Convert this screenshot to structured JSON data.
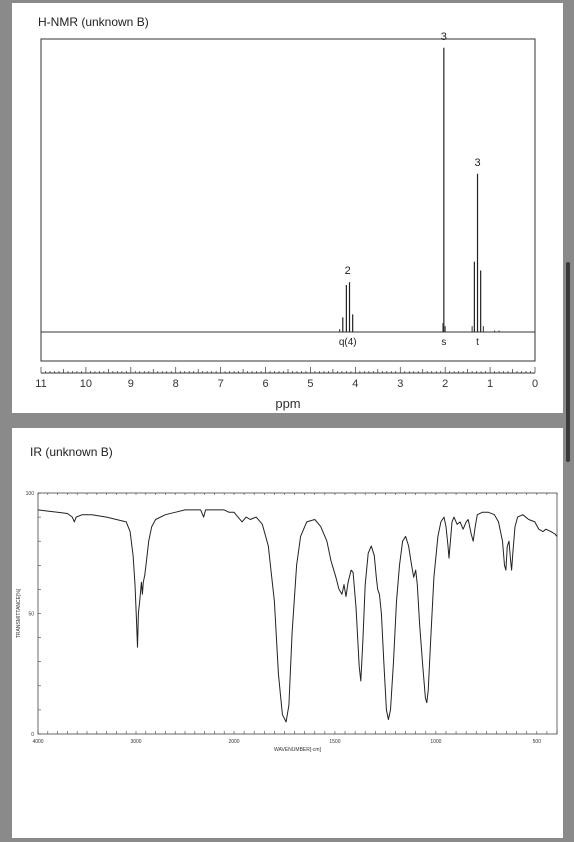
{
  "chart_data": [
    {
      "type": "line",
      "title": "H-NMR (unknown B)",
      "xlabel": "ppm",
      "ylabel": "",
      "xlim": [
        11,
        0
      ],
      "x_reversed": true,
      "x_ticks": [
        "11",
        "10",
        "9",
        "8",
        "7",
        "6",
        "5",
        "4",
        "3",
        "2",
        "1",
        "0"
      ],
      "grid": false,
      "peaks": [
        {
          "shift": 4.28,
          "height": 0.05
        },
        {
          "shift": 4.2,
          "height": 0.16
        },
        {
          "shift": 4.13,
          "height": 0.17
        },
        {
          "shift": 4.06,
          "height": 0.06
        },
        {
          "shift": 2.03,
          "height": 0.97
        },
        {
          "shift": 1.35,
          "height": 0.24
        },
        {
          "shift": 1.28,
          "height": 0.54
        },
        {
          "shift": 1.21,
          "height": 0.21
        }
      ],
      "annotations": [
        {
          "shift": 4.17,
          "integration": "2",
          "multiplicity": "q(4)"
        },
        {
          "shift": 2.03,
          "integration": "3",
          "multiplicity": "s"
        },
        {
          "shift": 1.28,
          "integration": "3",
          "multiplicity": "t"
        }
      ]
    },
    {
      "type": "line",
      "title": "IR (unknown B)",
      "xlabel": "WAVENUMBER[-cm]",
      "ylabel": "TRANSMITTANCE[%]",
      "xlim": [
        4000,
        400
      ],
      "x_reversed": true,
      "ylim": [
        0,
        100
      ],
      "x_ticks": [
        "4000",
        "3000",
        "2000",
        "1500",
        "1000",
        "500"
      ],
      "y_ticks": [
        "100",
        "50",
        "0"
      ],
      "grid": false,
      "spectrum": [
        [
          4000,
          93
        ],
        [
          3900,
          92.5
        ],
        [
          3800,
          92
        ],
        [
          3700,
          91.5
        ],
        [
          3650,
          90
        ],
        [
          3630,
          88
        ],
        [
          3610,
          90
        ],
        [
          3550,
          91
        ],
        [
          3450,
          91
        ],
        [
          3300,
          90
        ],
        [
          3200,
          89
        ],
        [
          3100,
          88
        ],
        [
          3060,
          84
        ],
        [
          3030,
          74
        ],
        [
          3010,
          62
        ],
        [
          2995,
          47
        ],
        [
          2985,
          36
        ],
        [
          2975,
          50
        ],
        [
          2960,
          56
        ],
        [
          2945,
          63
        ],
        [
          2935,
          58
        ],
        [
          2925,
          63
        ],
        [
          2910,
          66
        ],
        [
          2890,
          73
        ],
        [
          2870,
          80
        ],
        [
          2840,
          86
        ],
        [
          2800,
          89
        ],
        [
          2700,
          91
        ],
        [
          2600,
          92
        ],
        [
          2500,
          93
        ],
        [
          2400,
          93
        ],
        [
          2340,
          93
        ],
        [
          2310,
          90
        ],
        [
          2290,
          93
        ],
        [
          2200,
          93
        ],
        [
          2100,
          93
        ],
        [
          2050,
          92
        ],
        [
          2000,
          92
        ],
        [
          1980,
          90
        ],
        [
          1960,
          88
        ],
        [
          1940,
          90
        ],
        [
          1920,
          89
        ],
        [
          1890,
          90
        ],
        [
          1860,
          87
        ],
        [
          1830,
          78
        ],
        [
          1800,
          55
        ],
        [
          1780,
          25
        ],
        [
          1760,
          8
        ],
        [
          1742,
          5
        ],
        [
          1728,
          12
        ],
        [
          1712,
          42
        ],
        [
          1690,
          70
        ],
        [
          1670,
          82
        ],
        [
          1640,
          88
        ],
        [
          1600,
          89
        ],
        [
          1570,
          86
        ],
        [
          1540,
          80
        ],
        [
          1520,
          72
        ],
        [
          1495,
          65
        ],
        [
          1480,
          60
        ],
        [
          1465,
          58
        ],
        [
          1455,
          62
        ],
        [
          1445,
          57
        ],
        [
          1435,
          63
        ],
        [
          1420,
          68
        ],
        [
          1410,
          67
        ],
        [
          1395,
          52
        ],
        [
          1380,
          28
        ],
        [
          1372,
          22
        ],
        [
          1362,
          38
        ],
        [
          1350,
          62
        ],
        [
          1335,
          75
        ],
        [
          1320,
          78
        ],
        [
          1305,
          74
        ],
        [
          1295,
          65
        ],
        [
          1288,
          60
        ],
        [
          1280,
          58
        ],
        [
          1270,
          50
        ],
        [
          1258,
          30
        ],
        [
          1245,
          10
        ],
        [
          1235,
          6
        ],
        [
          1225,
          10
        ],
        [
          1210,
          30
        ],
        [
          1195,
          55
        ],
        [
          1180,
          70
        ],
        [
          1165,
          80
        ],
        [
          1150,
          82
        ],
        [
          1135,
          78
        ],
        [
          1120,
          70
        ],
        [
          1110,
          65
        ],
        [
          1100,
          68
        ],
        [
          1092,
          62
        ],
        [
          1080,
          45
        ],
        [
          1065,
          28
        ],
        [
          1052,
          15
        ],
        [
          1045,
          13
        ],
        [
          1038,
          18
        ],
        [
          1025,
          40
        ],
        [
          1010,
          65
        ],
        [
          990,
          82
        ],
        [
          975,
          88
        ],
        [
          960,
          90
        ],
        [
          950,
          86
        ],
        [
          940,
          78
        ],
        [
          935,
          73
        ],
        [
          928,
          80
        ],
        [
          920,
          88
        ],
        [
          910,
          90
        ],
        [
          895,
          87
        ],
        [
          880,
          88
        ],
        [
          865,
          85
        ],
        [
          850,
          88
        ],
        [
          840,
          89
        ],
        [
          825,
          83
        ],
        [
          815,
          80
        ],
        [
          805,
          86
        ],
        [
          795,
          91
        ],
        [
          770,
          92
        ],
        [
          740,
          92
        ],
        [
          710,
          91
        ],
        [
          690,
          88
        ],
        [
          670,
          80
        ],
        [
          660,
          70
        ],
        [
          653,
          68
        ],
        [
          646,
          78
        ],
        [
          638,
          80
        ],
        [
          630,
          72
        ],
        [
          625,
          68
        ],
        [
          618,
          76
        ],
        [
          608,
          86
        ],
        [
          595,
          90
        ],
        [
          570,
          91
        ],
        [
          540,
          89
        ],
        [
          510,
          88
        ],
        [
          490,
          85
        ],
        [
          470,
          84
        ],
        [
          455,
          85
        ],
        [
          430,
          84
        ],
        [
          410,
          83
        ],
        [
          400,
          82
        ]
      ]
    }
  ]
}
